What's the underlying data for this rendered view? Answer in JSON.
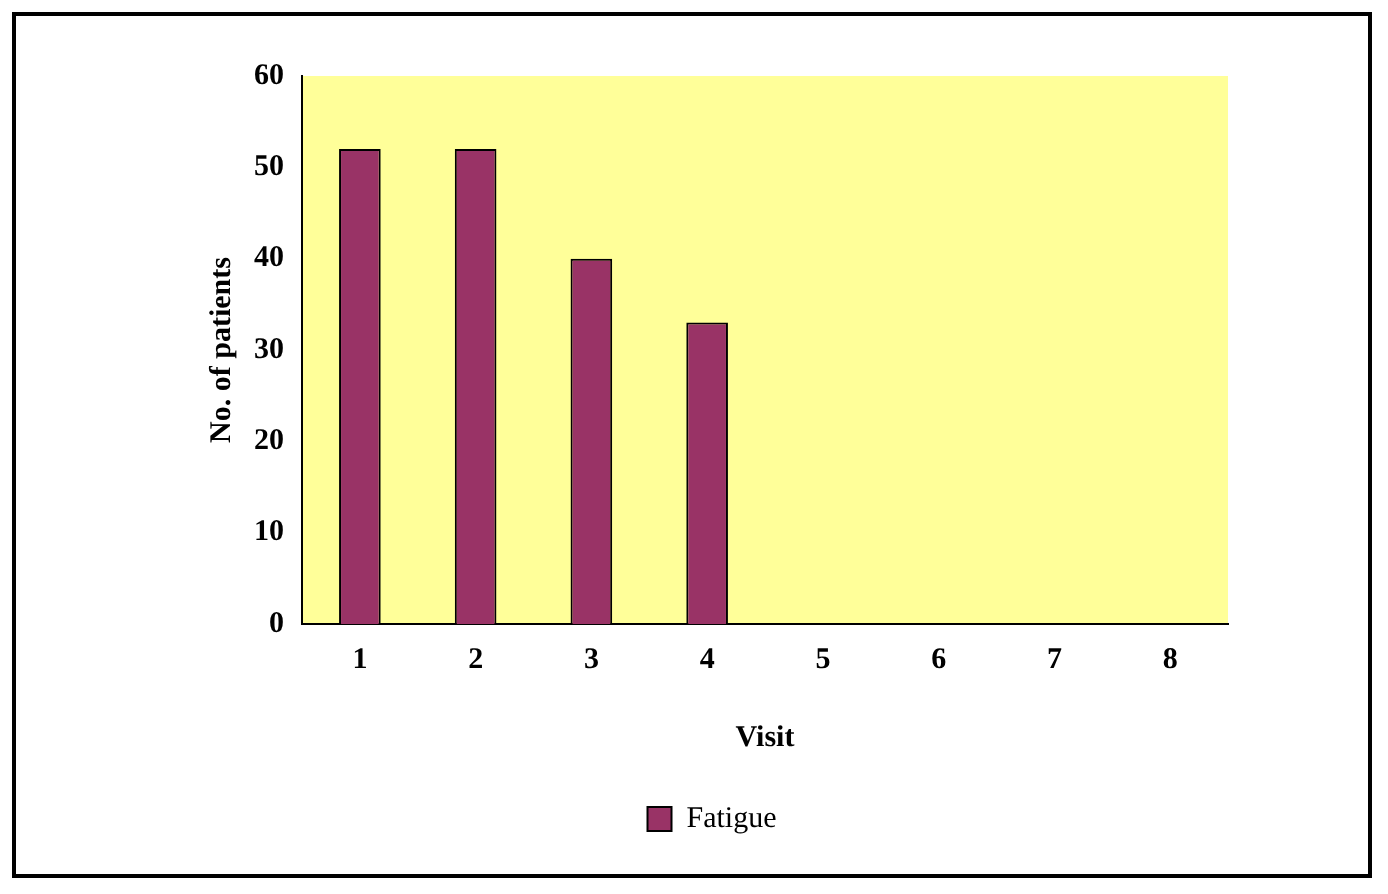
{
  "chart_data": {
    "type": "bar",
    "xlabel": "Visit",
    "ylabel": "No. of patients",
    "categories": [
      "1",
      "2",
      "3",
      "4",
      "5",
      "6",
      "7",
      "8"
    ],
    "series": [
      {
        "name": "Fatigue",
        "color": "#993366",
        "values": [
          52,
          52,
          40,
          33,
          0,
          0,
          0,
          0
        ]
      }
    ],
    "ylim": [
      0,
      60
    ],
    "yticks": [
      0,
      10,
      20,
      30,
      40,
      50,
      60
    ],
    "grid": false,
    "legend": "bottom"
  }
}
